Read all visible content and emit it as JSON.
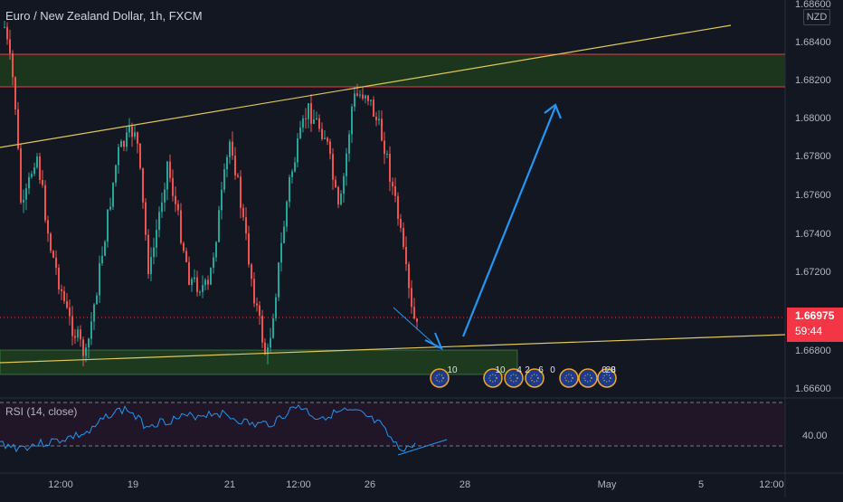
{
  "symbol": {
    "name": "Euro / New Zealand Dollar",
    "interval": "1h",
    "exchange": "FXCM"
  },
  "currency_label": "NZD",
  "last_price": {
    "value": "1.66975",
    "countdown": "59:44",
    "color": "#f23645"
  },
  "price_scale": [
    "1.68600",
    "1.68400",
    "1.68200",
    "1.68000",
    "1.67800",
    "1.67600",
    "1.67400",
    "1.67200",
    "1.66800",
    "1.66600"
  ],
  "rsi": {
    "label": "RSI (14, close)",
    "scale_label": "40.00"
  },
  "time_axis": [
    "12:00",
    "19",
    "21",
    "12:00",
    "26",
    "28",
    "May",
    "5",
    "12:00"
  ],
  "event_badges": [
    "10",
    "10",
    "4",
    "2",
    "6",
    "0",
    "8",
    "0",
    "20"
  ],
  "colors": {
    "background": "#131722",
    "up_candle": "#26a69a",
    "down_candle": "#ef5350",
    "zone_fill": "#1e3a1e",
    "zone_border": "#f23645",
    "trendline": "#e0c75a",
    "arrow": "#2196f3",
    "rsi_line": "#2196f3",
    "rsi_band": "#201628"
  }
}
